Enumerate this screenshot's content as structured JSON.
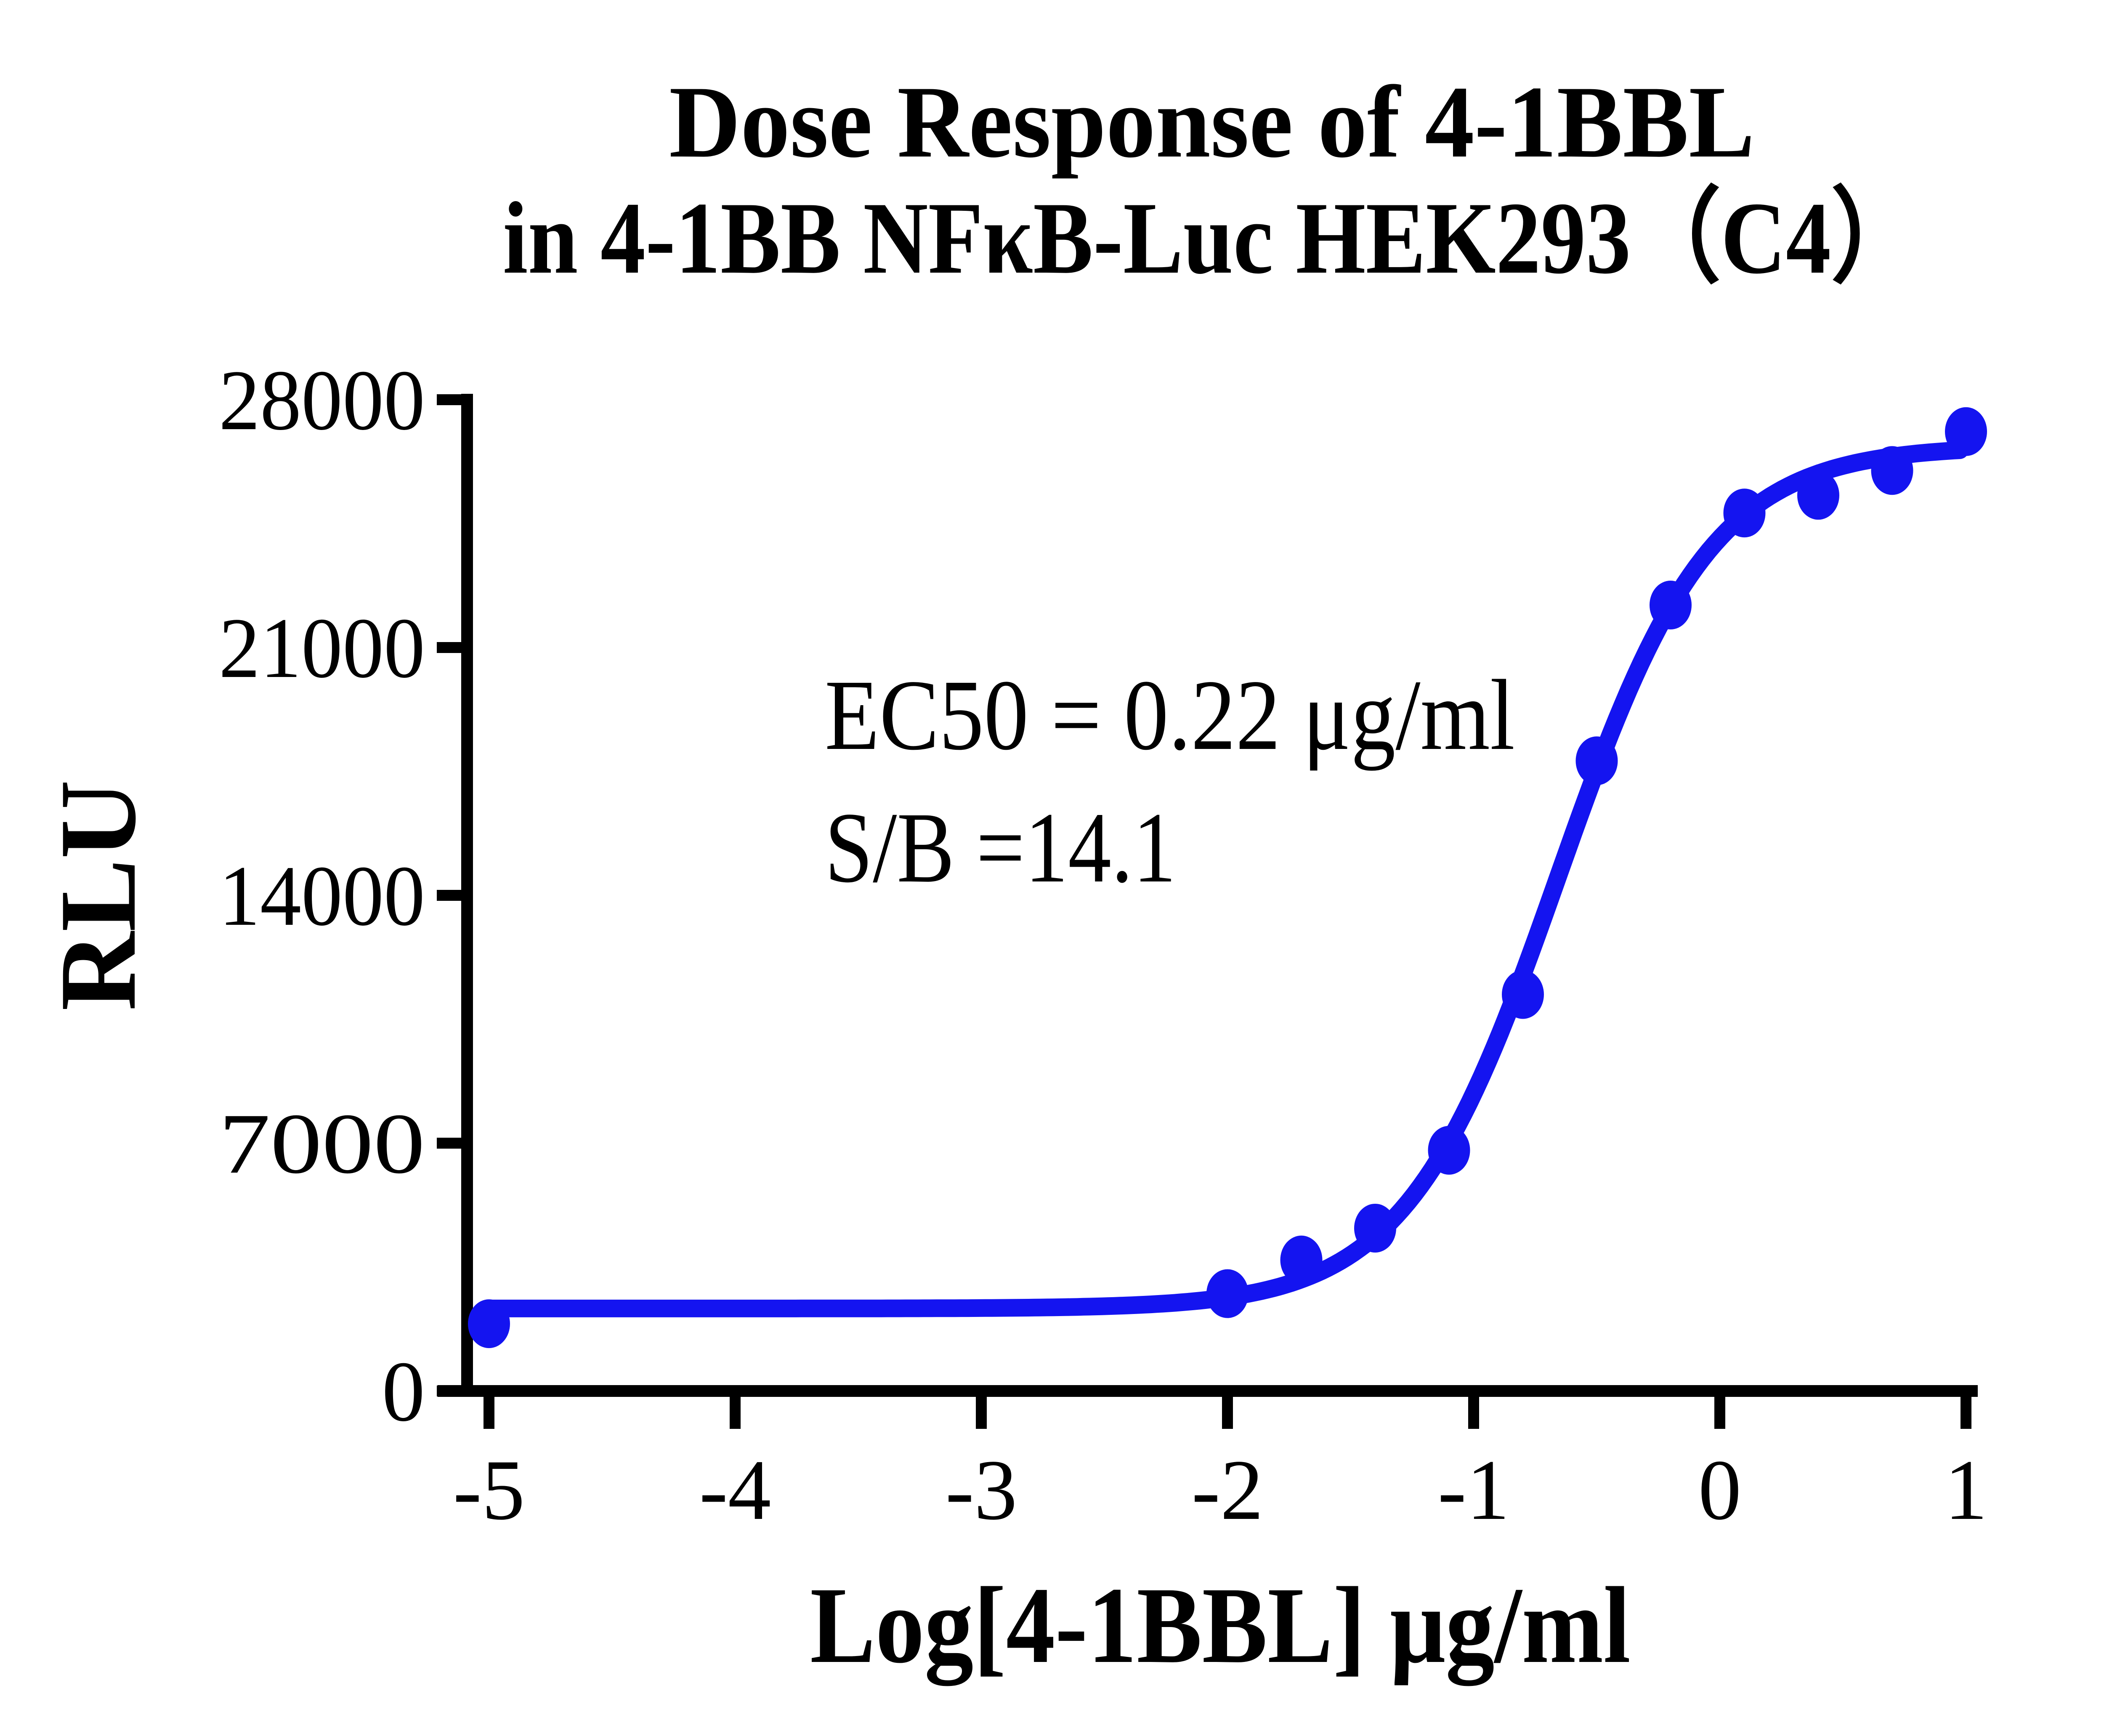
{
  "title": {
    "line1": "Dose Response of 4-1BBL",
    "line2": "in 4-1BB NFκB-Luc HEK293（C4）"
  },
  "annotation": {
    "ec50": "EC50 = 0.22 μg/ml",
    "sb": "S/B =14.1"
  },
  "axes": {
    "x_title": "Log[4-1BBL] μg/ml",
    "y_title": "RLU"
  },
  "colors": {
    "curve": "#1414F0",
    "axis": "#000000",
    "text": "#000000",
    "background": "#FFFFFF"
  },
  "chart_data": {
    "type": "scatter",
    "title": "Dose Response of 4-1BBL in 4-1BB NFκB-Luc HEK293（C4）",
    "xlabel": "Log[4-1BBL] μg/ml",
    "ylabel": "RLU",
    "xlim": [
      -5.2,
      1.1
    ],
    "ylim": [
      0,
      28000
    ],
    "grid": false,
    "legend_position": "none",
    "x_ticks": [
      -5,
      -4,
      -3,
      -2,
      -1,
      0,
      1
    ],
    "x_tick_labels": [
      "-5",
      "-4",
      "-3",
      "-2",
      "-1",
      "0",
      "1"
    ],
    "y_ticks": [
      0,
      7000,
      14000,
      21000,
      28000
    ],
    "y_tick_labels": [
      "0",
      "7000",
      "14000",
      "21000",
      "28000"
    ],
    "series": [
      {
        "name": "4-1BBL",
        "color": "#1414F0",
        "marker": "circle",
        "points": [
          {
            "x": -5.0,
            "y": 1900
          },
          {
            "x": -2.0,
            "y": 2750
          },
          {
            "x": -1.7,
            "y": 3700
          },
          {
            "x": -1.4,
            "y": 4600
          },
          {
            "x": -1.1,
            "y": 6800
          },
          {
            "x": -0.8,
            "y": 11200
          },
          {
            "x": -0.5,
            "y": 17800
          },
          {
            "x": -0.2,
            "y": 22200
          },
          {
            "x": 0.1,
            "y": 24800
          },
          {
            "x": 0.4,
            "y": 25300
          },
          {
            "x": 0.7,
            "y": 26000
          },
          {
            "x": 1.0,
            "y": 27100
          }
        ]
      }
    ],
    "fit_curve": {
      "model": "4PL",
      "bottom": 2330,
      "top": 26700,
      "log_ec50": -0.6576,
      "hill_slope": 1.4,
      "x_start": -5.0,
      "x_end": 0.975
    },
    "ec50_ug_ml": 0.22,
    "signal_to_background": 14.1
  }
}
